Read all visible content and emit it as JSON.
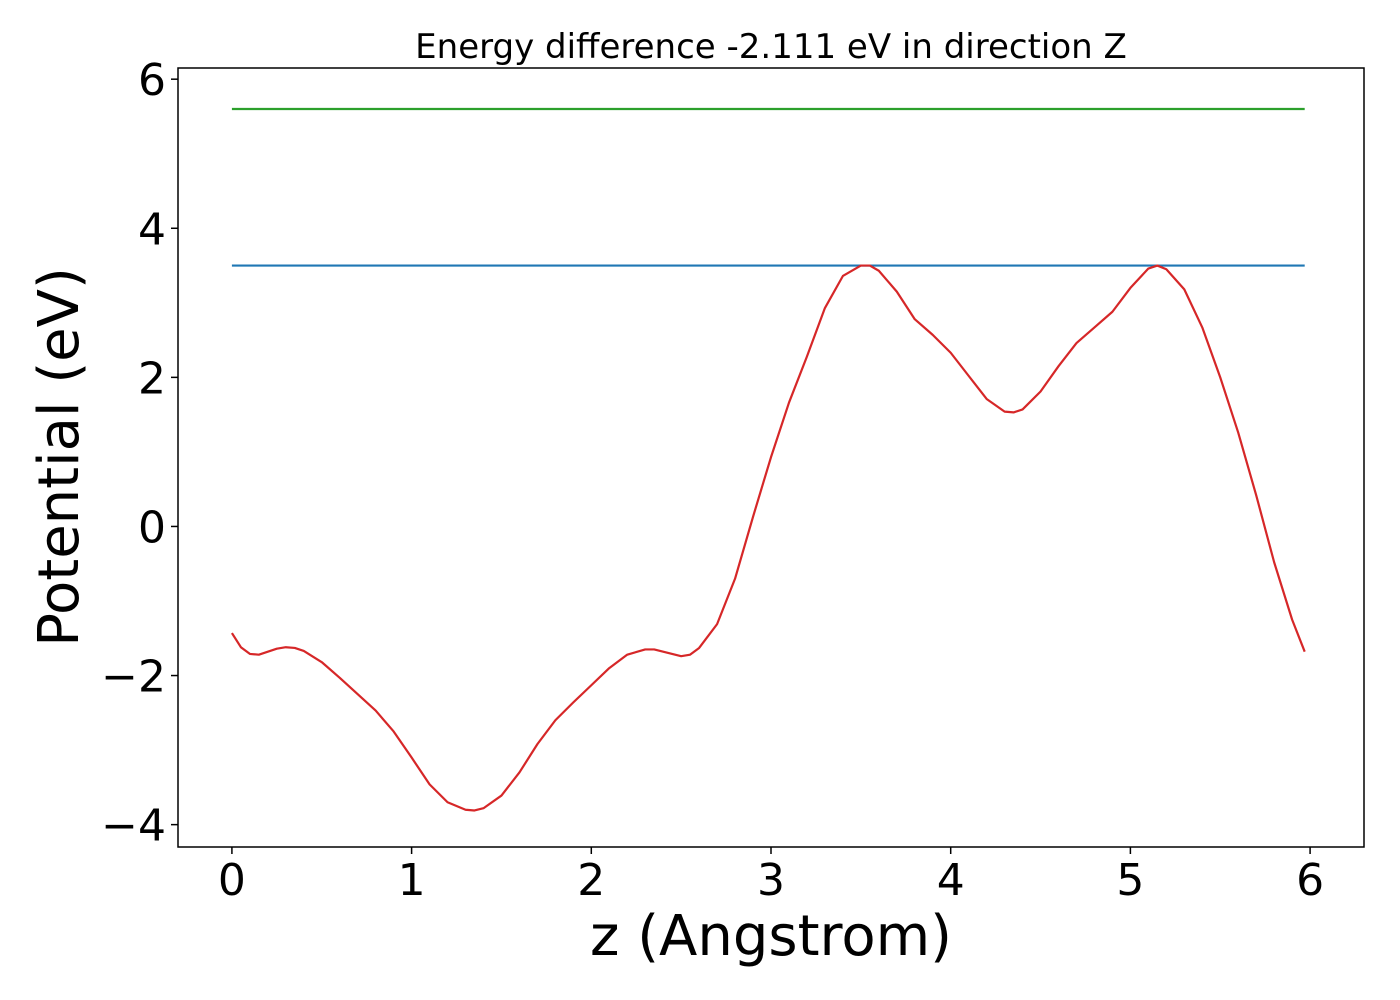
{
  "chart_data": {
    "type": "line",
    "title": "Energy difference -2.111 eV in direction Z",
    "xlabel": "z (Angstrom)",
    "ylabel": "Potential (eV)",
    "xlim": [
      -0.3,
      6.3
    ],
    "ylim": [
      -4.3,
      6.15
    ],
    "xticks": [
      0,
      1,
      2,
      3,
      4,
      5,
      6
    ],
    "xtick_labels": [
      "0",
      "1",
      "2",
      "3",
      "4",
      "5",
      "6"
    ],
    "yticks": [
      -4,
      -2,
      0,
      2,
      4,
      6
    ],
    "ytick_labels": [
      "−4",
      "−2",
      "0",
      "2",
      "4",
      "6"
    ],
    "grid": false,
    "series": [
      {
        "color": "#2ca02c",
        "x": [
          0,
          5.97
        ],
        "y": [
          5.6,
          5.6
        ]
      },
      {
        "color": "#1f77b4",
        "x": [
          0,
          5.97
        ],
        "y": [
          3.5,
          3.5
        ]
      },
      {
        "color": "#d62728",
        "x": [
          0,
          0.05,
          0.1,
          0.15,
          0.2,
          0.25,
          0.3,
          0.35,
          0.4,
          0.5,
          0.6,
          0.7,
          0.8,
          0.9,
          1.0,
          1.1,
          1.2,
          1.3,
          1.35,
          1.4,
          1.5,
          1.6,
          1.7,
          1.8,
          1.9,
          2.0,
          2.1,
          2.2,
          2.3,
          2.35,
          2.4,
          2.5,
          2.55,
          2.6,
          2.7,
          2.8,
          2.9,
          3.0,
          3.1,
          3.2,
          3.3,
          3.4,
          3.5,
          3.55,
          3.6,
          3.7,
          3.8,
          3.9,
          4.0,
          4.1,
          4.2,
          4.3,
          4.35,
          4.4,
          4.5,
          4.6,
          4.7,
          4.8,
          4.9,
          5.0,
          5.1,
          5.15,
          5.2,
          5.3,
          5.4,
          5.5,
          5.6,
          5.7,
          5.8,
          5.9,
          5.97
        ],
        "y": [
          -1.43,
          -1.62,
          -1.71,
          -1.72,
          -1.68,
          -1.64,
          -1.62,
          -1.63,
          -1.67,
          -1.82,
          -2.03,
          -2.25,
          -2.47,
          -2.75,
          -3.1,
          -3.46,
          -3.7,
          -3.8,
          -3.81,
          -3.78,
          -3.61,
          -3.3,
          -2.92,
          -2.6,
          -2.36,
          -2.13,
          -1.9,
          -1.72,
          -1.65,
          -1.65,
          -1.68,
          -1.74,
          -1.72,
          -1.63,
          -1.31,
          -0.7,
          0.13,
          0.93,
          1.66,
          2.28,
          2.93,
          3.36,
          3.5,
          3.5,
          3.43,
          3.15,
          2.78,
          2.57,
          2.33,
          2.02,
          1.71,
          1.54,
          1.53,
          1.57,
          1.81,
          2.15,
          2.46,
          2.67,
          2.88,
          3.2,
          3.46,
          3.5,
          3.45,
          3.18,
          2.67,
          2.0,
          1.26,
          0.42,
          -0.48,
          -1.25,
          -1.68
        ]
      }
    ]
  }
}
